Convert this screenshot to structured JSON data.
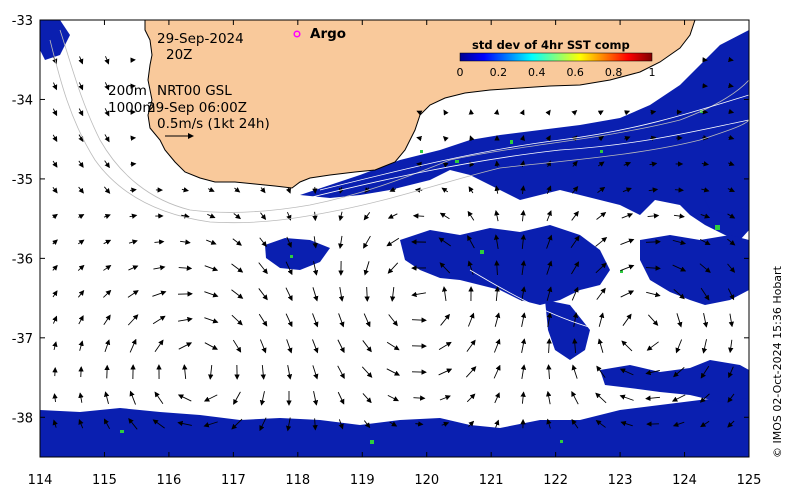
{
  "map": {
    "lon_range": [
      114,
      125
    ],
    "lat_range": [
      -38.5,
      -33
    ],
    "x_ticks": [
      "114",
      "115",
      "116",
      "117",
      "118",
      "119",
      "120",
      "121",
      "122",
      "123",
      "124",
      "125"
    ],
    "y_ticks": [
      "-33",
      "-34",
      "-35",
      "-36",
      "-37",
      "-38"
    ],
    "colors": {
      "land": "#f9c99b",
      "ocean_low": "#0a1fb0",
      "ocean_mid": "#1e4fe0",
      "coastline": "#000000",
      "frame": "#000000"
    }
  },
  "annotations": {
    "date": "29-Sep-2024",
    "hour": "20Z",
    "depth1": "200m",
    "depth2": "1000m",
    "product": "NRT00 GSL",
    "product_time": "29-Sep 06:00Z",
    "scale": "0.5m/s (1kt 24h)"
  },
  "legend": {
    "argo_label": "Argo",
    "argo_color": "#ff00ff"
  },
  "colorbar": {
    "title": "std dev of 4hr SST comp",
    "ticks": [
      "0",
      "0.2",
      "0.4",
      "0.6",
      "0.8",
      "1"
    ],
    "colors": [
      "#00008f",
      "#0000ff",
      "#0080ff",
      "#00ffff",
      "#80ff80",
      "#ffff00",
      "#ff8000",
      "#ff0000",
      "#800000"
    ]
  },
  "credit": "© IMOS 02-Oct-2024 15:36 Hobart"
}
